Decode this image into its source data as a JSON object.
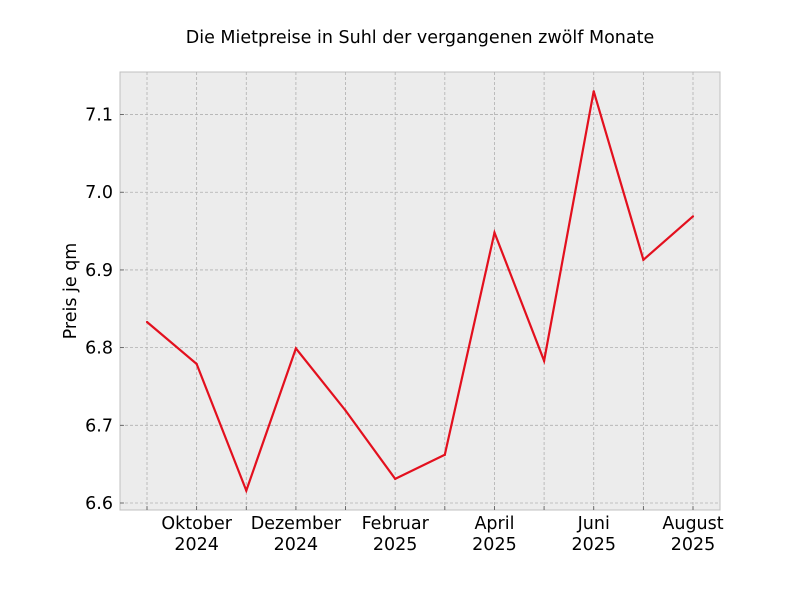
{
  "chart_data": {
    "type": "line",
    "title": "Die Mietpreise in Suhl der vergangenen zwölf Monate",
    "xlabel": "",
    "ylabel": "Preis je qm",
    "x": [
      "2024-09",
      "2024-10",
      "2024-11",
      "2024-12",
      "2025-01",
      "2025-02",
      "2025-03",
      "2025-04",
      "2025-05",
      "2025-06",
      "2025-07",
      "2025-08"
    ],
    "x_tick_labels": [
      {
        "month": "Oktober",
        "year": "2024"
      },
      {
        "month": "Dezember",
        "year": "2024"
      },
      {
        "month": "Februar",
        "year": "2025"
      },
      {
        "month": "April",
        "year": "2025"
      },
      {
        "month": "Juni",
        "year": "2025"
      },
      {
        "month": "August",
        "year": "2025"
      }
    ],
    "y_tick_labels": [
      "6.6",
      "6.7",
      "6.8",
      "6.9",
      "7.0",
      "7.1"
    ],
    "ylim": [
      6.59,
      7.155
    ],
    "series": [
      {
        "values": [
          6.833,
          6.779,
          6.616,
          6.799,
          6.719,
          6.631,
          6.662,
          6.948,
          6.783,
          7.13,
          6.913,
          6.969
        ],
        "color": "#e3101e"
      }
    ],
    "grid": true,
    "background": "#ececec"
  }
}
